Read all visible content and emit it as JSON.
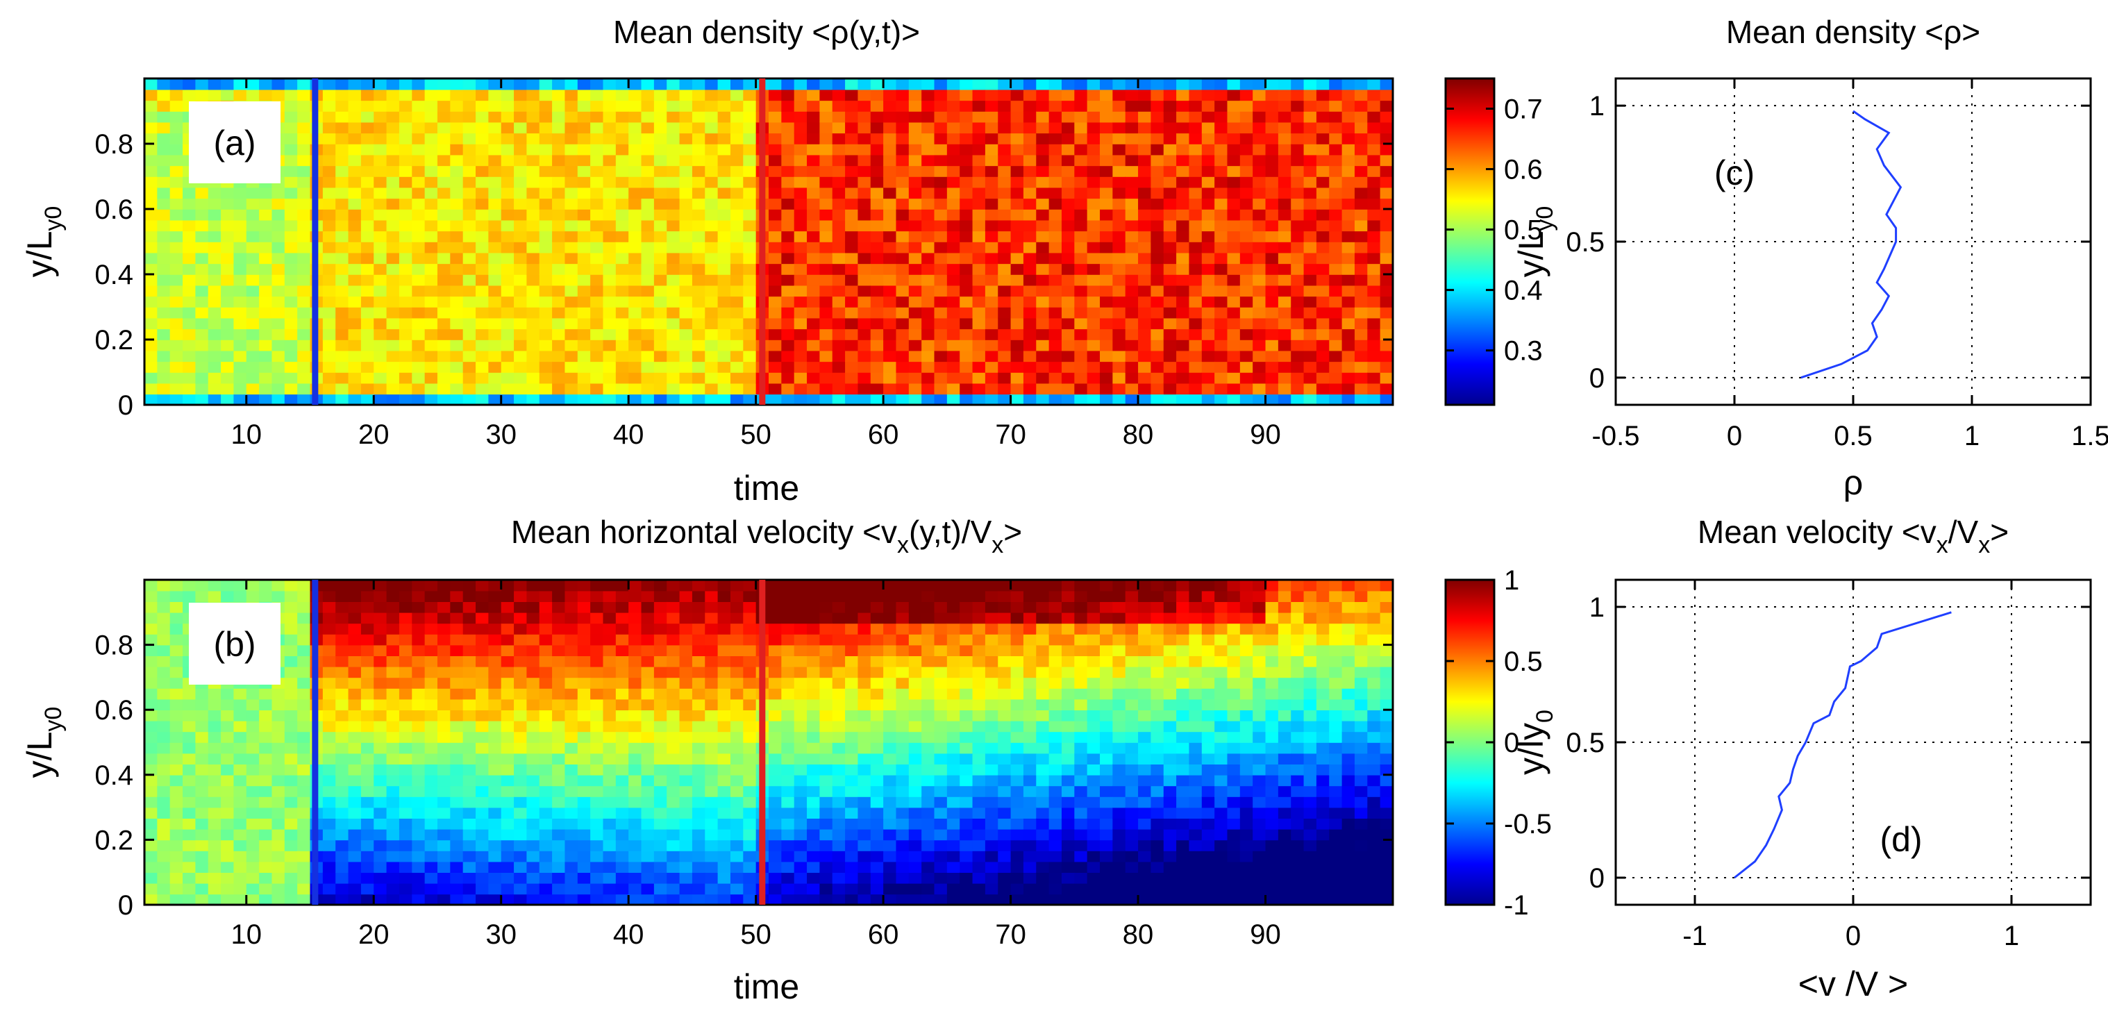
{
  "chart_data": [
    {
      "id": "a",
      "type": "heatmap",
      "title_main": "Mean density <ρ(y,t)>",
      "panel_label": "(a)",
      "xlabel": "time",
      "ylabel_main": "y/L",
      "ylabel_sub": "y0",
      "xlim": [
        2,
        100
      ],
      "ylim": [
        0,
        1
      ],
      "xticks": [
        "10",
        "20",
        "30",
        "40",
        "50",
        "60",
        "70",
        "80",
        "90"
      ],
      "xtick_values": [
        10,
        20,
        30,
        40,
        50,
        60,
        70,
        80,
        90
      ],
      "yticks": [
        "0",
        "0.2",
        "0.4",
        "0.6",
        "0.8"
      ],
      "ytick_values": [
        0,
        0.2,
        0.4,
        0.6,
        0.8
      ],
      "colorbar_ticks": [
        "0.3",
        "0.4",
        "0.5",
        "0.6",
        "0.7"
      ],
      "colorbar_values": [
        0.3,
        0.4,
        0.5,
        0.6,
        0.7
      ],
      "colorbar_range": [
        0.21,
        0.75
      ],
      "markers": [
        {
          "x": 15.4,
          "color": "#1530e0"
        },
        {
          "x": 50.5,
          "color": "#e02020"
        }
      ],
      "colors": {
        "low": "#00008f",
        "high": "#800000"
      }
    },
    {
      "id": "b",
      "type": "heatmap",
      "title_main": "Mean horizontal velocity <v",
      "title_sub1": "x",
      "title_mid": "(y,t)/V",
      "title_sub2": "x",
      "title_end": ">",
      "panel_label": "(b)",
      "xlabel": "time",
      "ylabel_main": "y/L",
      "ylabel_sub": "y0",
      "xlim": [
        2,
        100
      ],
      "ylim": [
        0,
        1
      ],
      "xticks": [
        "10",
        "20",
        "30",
        "40",
        "50",
        "60",
        "70",
        "80",
        "90"
      ],
      "xtick_values": [
        10,
        20,
        30,
        40,
        50,
        60,
        70,
        80,
        90
      ],
      "yticks": [
        "0",
        "0.2",
        "0.4",
        "0.6",
        "0.8"
      ],
      "ytick_values": [
        0,
        0.2,
        0.4,
        0.6,
        0.8
      ],
      "colorbar_ticks": [
        "-1",
        "-0.5",
        "0",
        "0.5",
        "1"
      ],
      "colorbar_values": [
        -1,
        -0.5,
        0,
        0.5,
        1
      ],
      "colorbar_range": [
        -1,
        1
      ],
      "markers": [
        {
          "x": 15.4,
          "color": "#1530e0"
        },
        {
          "x": 50.5,
          "color": "#e02020"
        }
      ]
    },
    {
      "id": "c",
      "type": "line",
      "title_main": "Mean density <ρ>",
      "panel_label": "(c)",
      "xlabel": "ρ",
      "ylabel_main": "y/L",
      "ylabel_sub": "y0",
      "xlim": [
        -0.5,
        1.5
      ],
      "ylim": [
        -0.1,
        1.1
      ],
      "xticks": [
        "-0.5",
        "0",
        "0.5",
        "1",
        "1.5"
      ],
      "xtick_values": [
        -0.5,
        0,
        0.5,
        1,
        1.5
      ],
      "yticks": [
        "0",
        "0.5",
        "1"
      ],
      "ytick_values": [
        0,
        0.5,
        1
      ],
      "grid": true,
      "line_color": "#1f3fff",
      "series": [
        {
          "name": "mean density",
          "x": [
            0.28,
            0.45,
            0.56,
            0.6,
            0.58,
            0.62,
            0.65,
            0.6,
            0.63,
            0.68,
            0.68,
            0.64,
            0.7,
            0.63,
            0.6,
            0.65,
            0.55,
            0.5
          ],
          "y": [
            0.0,
            0.05,
            0.1,
            0.15,
            0.2,
            0.25,
            0.3,
            0.35,
            0.4,
            0.5,
            0.55,
            0.6,
            0.7,
            0.78,
            0.84,
            0.9,
            0.95,
            0.98
          ]
        }
      ]
    },
    {
      "id": "d",
      "type": "line",
      "title_main": "Mean velocity <v",
      "title_sub1": "x",
      "title_mid": "/V",
      "title_sub2": "x",
      "title_end": ">",
      "panel_label": "(d)",
      "xlabel_main": "<v /V >",
      "ylabel_main": "y/ly",
      "ylabel_sub": "0",
      "xlim": [
        -1.5,
        1.5
      ],
      "ylim": [
        -0.1,
        1.1
      ],
      "xticks": [
        "-1",
        "0",
        "1"
      ],
      "xtick_values": [
        -1,
        0,
        1
      ],
      "yticks": [
        "0",
        "0.5",
        "1"
      ],
      "ytick_values": [
        0,
        0.5,
        1
      ],
      "grid": true,
      "line_color": "#1f3fff",
      "series": [
        {
          "name": "mean velocity",
          "x": [
            -0.75,
            -0.62,
            -0.55,
            -0.5,
            -0.45,
            -0.47,
            -0.4,
            -0.38,
            -0.35,
            -0.3,
            -0.25,
            -0.15,
            -0.12,
            -0.05,
            -0.02,
            0.05,
            0.15,
            0.18,
            0.62
          ],
          "y": [
            0.0,
            0.06,
            0.12,
            0.18,
            0.25,
            0.3,
            0.35,
            0.4,
            0.45,
            0.5,
            0.57,
            0.6,
            0.65,
            0.7,
            0.78,
            0.8,
            0.85,
            0.9,
            0.98
          ]
        }
      ]
    }
  ]
}
